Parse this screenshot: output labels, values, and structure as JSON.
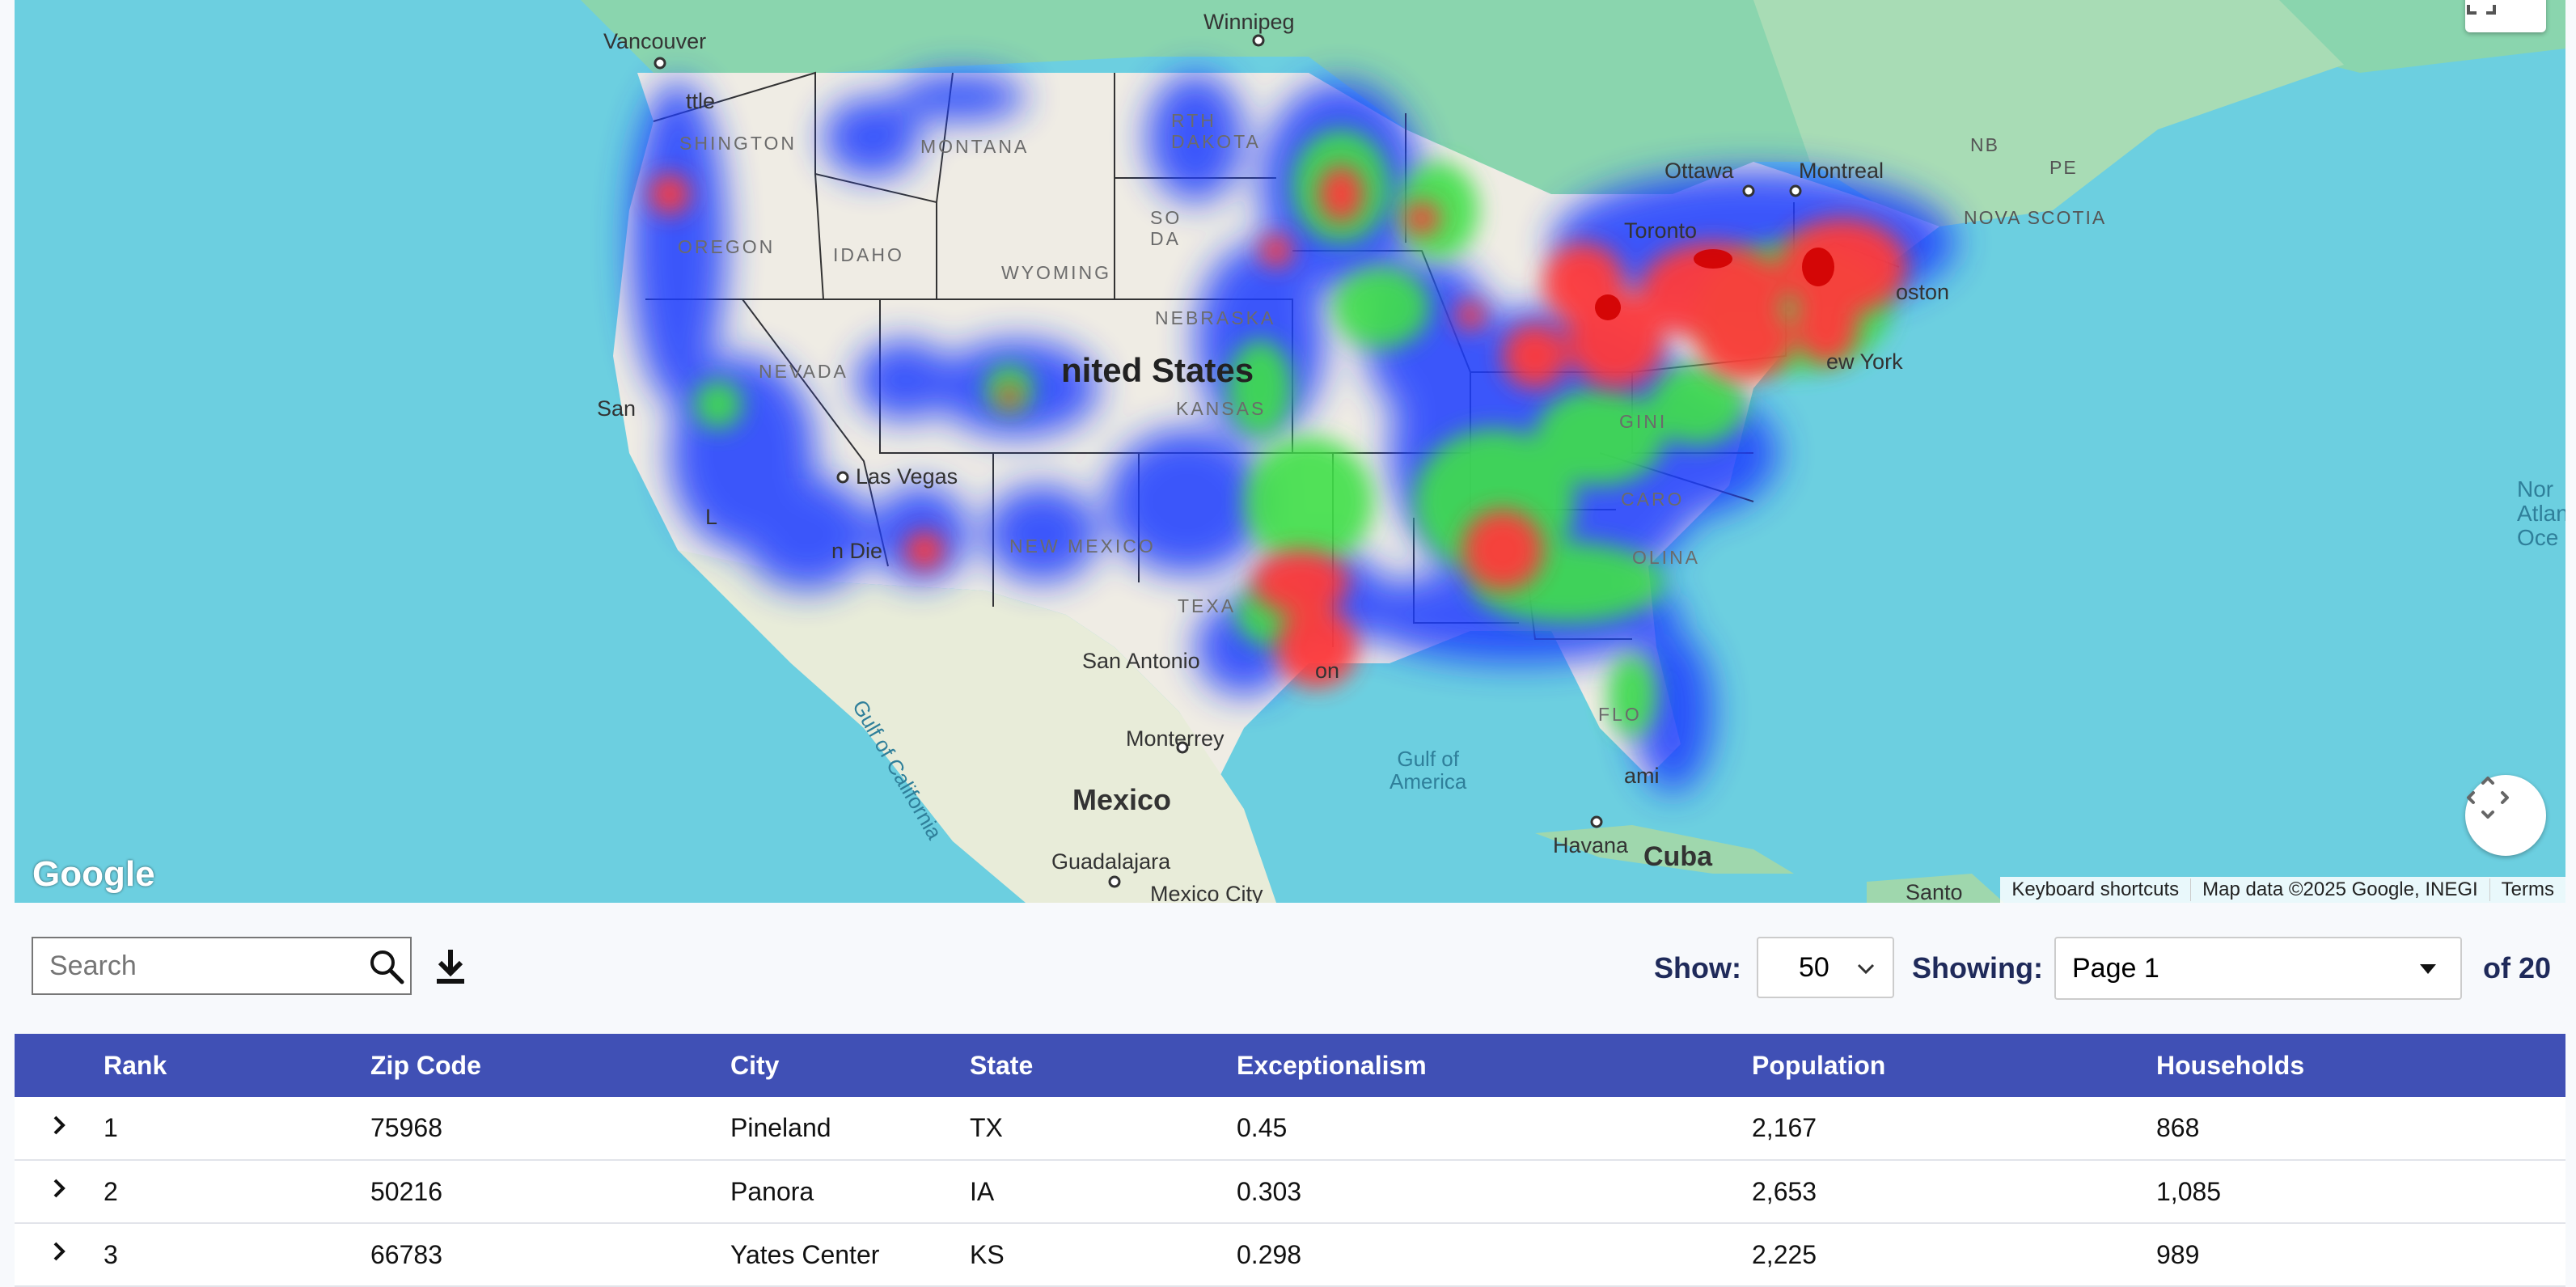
{
  "map": {
    "labels": {
      "vancouver": "Vancouver",
      "winnipeg": "Winnipeg",
      "ottawa": "Ottawa",
      "montreal": "Montreal",
      "toronto": "Toronto",
      "boston": "oston",
      "new_york": "ew York",
      "nb": "NB",
      "pe": "PE",
      "nova_scotia": "NOVA SCOTIA",
      "seattle": "ttle",
      "washington": "SHINGTON",
      "montana": "MONTANA",
      "north_dakota": "RTH\nDAKOTA",
      "south_dakota": "SO\nDA",
      "oregon": "OREGON",
      "idaho": "IDAHO",
      "wyoming": "WYOMING",
      "nebraska": "NEBRASKA",
      "nevada": "NEVADA",
      "united_states": "nited States",
      "kansas": "KANSAS",
      "sf": "San",
      "las_vegas": "Las Vegas",
      "la": "L",
      "san_diego": "n Die",
      "new_mexico": "NEW MEXICO",
      "texas": "TEXA",
      "san_antonio": "San Antonio",
      "houston": "on",
      "gulf_california": "Gulf of California",
      "monterrey": "Monterrey",
      "mexico": "Mexico",
      "guadalajara": "Guadalajara",
      "mexico_city": "Mexico City",
      "gulf_mexico": "Gulf of\nAmerica",
      "havana": "Havana",
      "cuba": "Cuba",
      "santo": "Santo",
      "miami": "ami",
      "florida": "FLO",
      "carolina": "CARO",
      "olina": "OLINA",
      "virginia": "GINI",
      "north_atlantic": "Nor\nAtlan\nOce"
    },
    "google_logo": "Google",
    "attribution": [
      "Keyboard shortcuts",
      "Map data ©2025 Google, INEGI",
      "Terms"
    ],
    "icons": {
      "fullscreen": "fullscreen-icon",
      "camera": "camera-control-icon"
    }
  },
  "controls": {
    "search_placeholder": "Search",
    "show_label": "Show:",
    "show_value": "50",
    "showing_label": "Showing:",
    "page_value": "Page 1",
    "of_label": "of 20"
  },
  "table": {
    "headers": [
      "Rank",
      "Zip Code",
      "City",
      "State",
      "Exceptionalism",
      "Population",
      "Households"
    ],
    "rows": [
      {
        "rank": "1",
        "zip": "75968",
        "city": "Pineland",
        "state": "TX",
        "exceptionalism": "0.45",
        "population": "2,167",
        "households": "868"
      },
      {
        "rank": "2",
        "zip": "50216",
        "city": "Panora",
        "state": "IA",
        "exceptionalism": "0.303",
        "population": "2,653",
        "households": "1,085"
      },
      {
        "rank": "3",
        "zip": "66783",
        "city": "Yates Center",
        "state": "KS",
        "exceptionalism": "0.298",
        "population": "2,225",
        "households": "989"
      }
    ]
  },
  "colors": {
    "ocean": "#6ccfe0",
    "land": "#efece4",
    "header_bg": "#4050b5",
    "heat_low": "#1a3dff",
    "heat_mid": "#3fe04a",
    "heat_high": "#ff3b3b"
  }
}
